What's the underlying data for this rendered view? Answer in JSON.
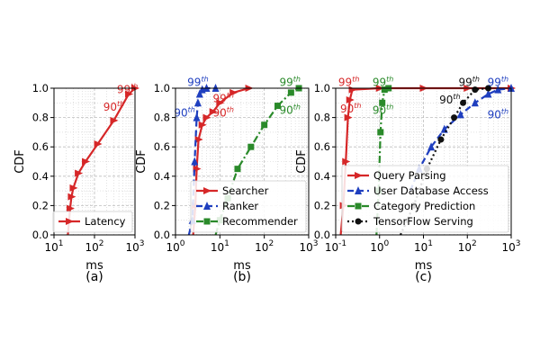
{
  "colors": {
    "red": "#d62728",
    "blue": "#1f3fbf",
    "green": "#2a8a2a",
    "black": "#111111",
    "grid": "#cfcfcf"
  },
  "chart_data": [
    {
      "type": "line",
      "panel_label": "(a)",
      "xlabel": "ms",
      "ylabel": "CDF",
      "xscale": "log",
      "xlim": [
        10,
        1000
      ],
      "ylim": [
        0,
        1.0
      ],
      "xticks": [
        "10^1",
        "10^2",
        "10^3"
      ],
      "yticks": [
        "0.0",
        "0.2",
        "0.4",
        "0.6",
        "0.8",
        "1.0"
      ],
      "grid": true,
      "legend_position": "bottom-right",
      "series": [
        {
          "name": "Latency",
          "color": "red",
          "linestyle": "solid",
          "marker": "triangle-right",
          "x": [
            22,
            25,
            27,
            30,
            40,
            60,
            120,
            300,
            700,
            1000
          ],
          "y": [
            0.0,
            0.18,
            0.26,
            0.32,
            0.42,
            0.5,
            0.62,
            0.78,
            0.96,
            1.0
          ]
        }
      ],
      "annotations": [
        {
          "text": "99",
          "sup": "th",
          "x": 650,
          "y": 0.99,
          "color": "red"
        },
        {
          "text": "90",
          "sup": "th",
          "x": 300,
          "y": 0.87,
          "color": "red"
        }
      ]
    },
    {
      "type": "line",
      "panel_label": "(b)",
      "xlabel": "ms",
      "ylabel": "CDF",
      "xscale": "log",
      "xlim": [
        1,
        1000
      ],
      "ylim": [
        0,
        1.0
      ],
      "xticks": [
        "10^0",
        "10^1",
        "10^2",
        "10^3"
      ],
      "yticks": [
        "0.0",
        "0.2",
        "0.4",
        "0.6",
        "0.8",
        "1.0"
      ],
      "grid": true,
      "legend_position": "bottom-right",
      "series": [
        {
          "name": "Searcher",
          "color": "red",
          "linestyle": "solid",
          "marker": "triangle-right",
          "x": [
            2.5,
            2.8,
            3.0,
            3.3,
            4,
            5,
            7,
            10,
            20,
            45
          ],
          "y": [
            0.0,
            0.2,
            0.45,
            0.65,
            0.75,
            0.8,
            0.84,
            0.9,
            0.97,
            1.0
          ]
        },
        {
          "name": "Ranker",
          "color": "blue",
          "linestyle": "dashed",
          "marker": "triangle-up",
          "x": [
            2.0,
            2.4,
            2.7,
            3.0,
            3.2,
            3.5,
            4,
            5,
            8
          ],
          "y": [
            0.0,
            0.1,
            0.5,
            0.8,
            0.9,
            0.96,
            0.99,
            1.0,
            1.0
          ]
        },
        {
          "name": "Recommender",
          "color": "green",
          "linestyle": "dash-dot",
          "marker": "square",
          "x": [
            8,
            10,
            15,
            25,
            50,
            100,
            200,
            400,
            600
          ],
          "y": [
            0.0,
            0.1,
            0.25,
            0.45,
            0.6,
            0.75,
            0.88,
            0.97,
            1.0
          ]
        }
      ],
      "annotations": [
        {
          "text": "99",
          "sup": "th",
          "x": 3.2,
          "y": 1.04,
          "color": "blue"
        },
        {
          "text": "90",
          "sup": "th",
          "x": 1.6,
          "y": 0.83,
          "color": "blue"
        },
        {
          "text": "99",
          "sup": "th",
          "x": 12,
          "y": 0.93,
          "color": "red"
        },
        {
          "text": "90",
          "sup": "th",
          "x": 12,
          "y": 0.83,
          "color": "red"
        },
        {
          "text": "99",
          "sup": "th",
          "x": 380,
          "y": 1.04,
          "color": "green"
        },
        {
          "text": "90",
          "sup": "th",
          "x": 380,
          "y": 0.85,
          "color": "green"
        }
      ]
    },
    {
      "type": "line",
      "panel_label": "(c)",
      "xlabel": "ms",
      "ylabel": "CDF",
      "xscale": "log",
      "xlim": [
        0.1,
        1000
      ],
      "ylim": [
        0,
        1.0
      ],
      "xticks": [
        "10^-1",
        "10^0",
        "10^1",
        "10^2",
        "10^3"
      ],
      "yticks": [
        "0.0",
        "0.2",
        "0.4",
        "0.6",
        "0.8",
        "1.0"
      ],
      "grid": true,
      "legend_position": "bottom-right",
      "series": [
        {
          "name": "Query Parsing",
          "color": "red",
          "linestyle": "solid",
          "marker": "triangle-right",
          "x": [
            0.13,
            0.15,
            0.17,
            0.19,
            0.21,
            0.24,
            1,
            10,
            100,
            1000
          ],
          "y": [
            0.0,
            0.2,
            0.5,
            0.8,
            0.92,
            0.99,
            1.0,
            1.0,
            1.0,
            1.0
          ]
        },
        {
          "name": "User Database Access",
          "color": "blue",
          "linestyle": "dashed",
          "marker": "triangle-up",
          "x": [
            5,
            8,
            15,
            30,
            70,
            150,
            300,
            500,
            1000
          ],
          "y": [
            0.3,
            0.45,
            0.6,
            0.72,
            0.82,
            0.9,
            0.96,
            0.99,
            1.0
          ]
        },
        {
          "name": "Category Prediction",
          "color": "green",
          "linestyle": "dash-dot",
          "marker": "square",
          "x": [
            0.85,
            0.95,
            1.05,
            1.15,
            1.3,
            1.6
          ],
          "y": [
            0.0,
            0.3,
            0.7,
            0.9,
            0.99,
            1.0
          ]
        },
        {
          "name": "TensorFlow Serving",
          "color": "black",
          "linestyle": "dotted",
          "marker": "circle",
          "x": [
            3,
            6,
            12,
            25,
            50,
            80,
            150,
            300
          ],
          "y": [
            0.0,
            0.2,
            0.45,
            0.65,
            0.8,
            0.9,
            0.99,
            1.0
          ]
        }
      ],
      "annotations": [
        {
          "text": "99",
          "sup": "th",
          "x": 0.2,
          "y": 1.04,
          "color": "red"
        },
        {
          "text": "90",
          "sup": "th",
          "x": 0.22,
          "y": 0.86,
          "color": "red"
        },
        {
          "text": "99",
          "sup": "th",
          "x": 1.2,
          "y": 1.04,
          "color": "green"
        },
        {
          "text": "90",
          "sup": "th",
          "x": 1.2,
          "y": 0.85,
          "color": "green"
        },
        {
          "text": "99",
          "sup": "th",
          "x": 110,
          "y": 1.04,
          "color": "black"
        },
        {
          "text": "90",
          "sup": "th",
          "x": 40,
          "y": 0.92,
          "color": "black"
        },
        {
          "text": "99",
          "sup": "th",
          "x": 500,
          "y": 1.04,
          "color": "blue"
        },
        {
          "text": "90",
          "sup": "th",
          "x": 500,
          "y": 0.82,
          "color": "blue"
        }
      ]
    }
  ]
}
